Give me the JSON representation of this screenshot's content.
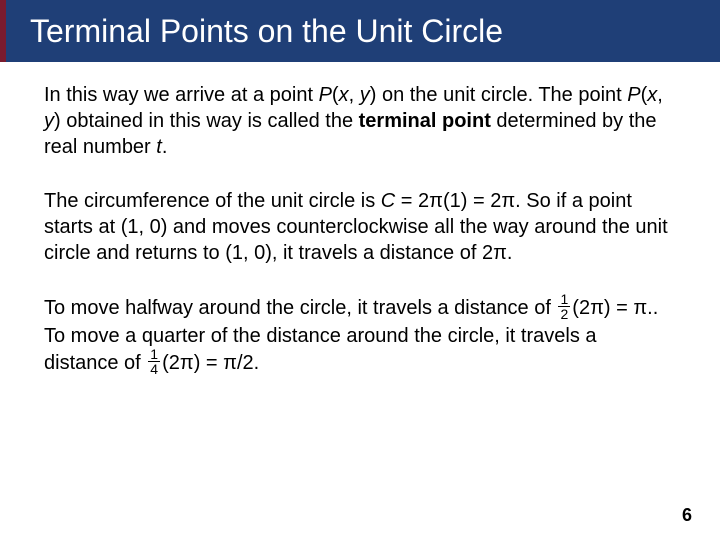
{
  "title": "Terminal Points on the Unit Circle",
  "colors": {
    "title_bg": "#1f3f77",
    "title_accent": "#7a1b2e",
    "title_text": "#ffffff",
    "body_bg": "#ffffff",
    "body_text": "#000000"
  },
  "typography": {
    "title_fontsize": 32,
    "body_fontsize": 20,
    "pagenum_fontsize": 18
  },
  "para1": {
    "t1": "In this way we arrive at a point ",
    "P": "P",
    "xy": "(",
    "x": "x",
    "comma": ", ",
    "y": "y",
    "close": ")",
    "t2": " on the unit circle. The point ",
    "t3": " obtained in this way is called the ",
    "bold": "terminal point",
    "t4": " determined by the real number ",
    "tvar": "t",
    "period": "."
  },
  "para2": {
    "t1": "The circumference of the unit circle is ",
    "C": "C",
    "eq": " = 2",
    "pi": "π",
    "one": "(1) = 2",
    "t2": ". So if a point starts at (1, 0) and moves counterclockwise all the way around the unit circle and returns to (1, 0), it travels a distance of 2",
    "period": "."
  },
  "para3": {
    "t1": "To move halfway around the circle, it travels a distance of ",
    "frac1_num": "1",
    "frac1_den": "2",
    "twopi_open": "(2",
    "pi": "π",
    "close_eq": ") = ",
    "t2": ". To move a quarter of the distance around the circle, it travels a distance of ",
    "frac2_num": "1",
    "frac2_den": "4",
    "eq2": "/2.",
    "period1": "."
  },
  "page_number": "6"
}
